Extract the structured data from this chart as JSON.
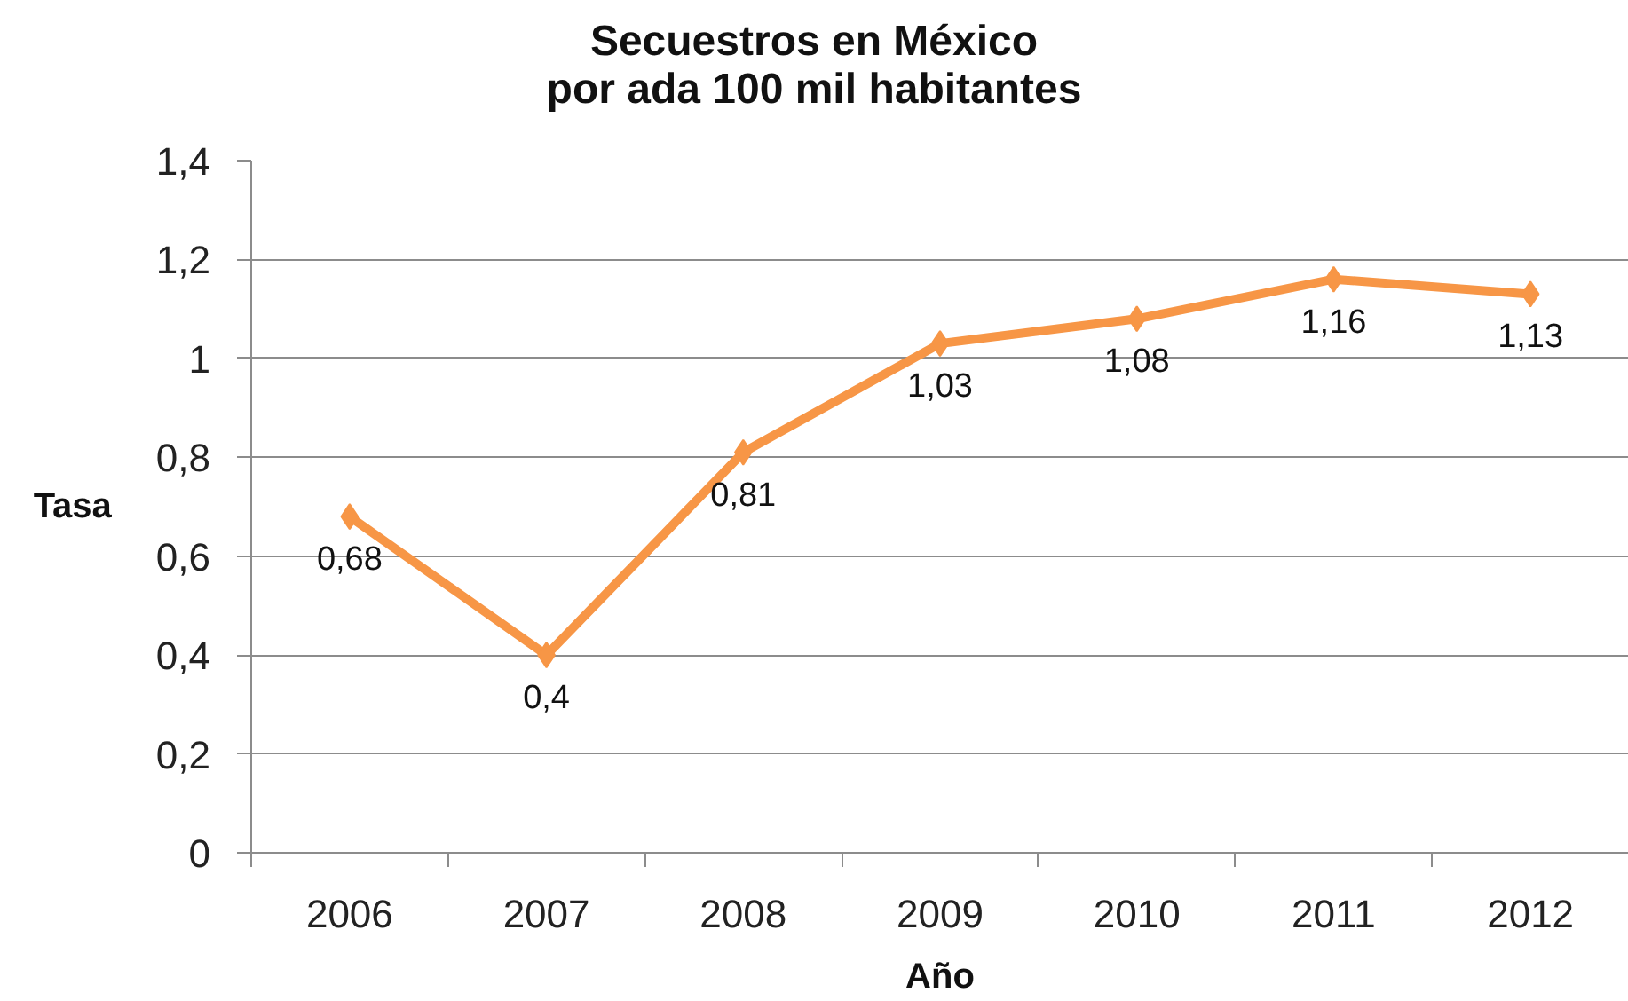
{
  "chart_data": {
    "type": "line",
    "title": "Secuestros en México\npor ada 100 mil habitantes",
    "xlabel": "Año",
    "ylabel": "Tasa",
    "categories": [
      "2006",
      "2007",
      "2008",
      "2009",
      "2010",
      "2011",
      "2012"
    ],
    "series": [
      {
        "color": "#f79646",
        "values": [
          0.68,
          0.4,
          0.81,
          1.03,
          1.08,
          1.16,
          1.13
        ],
        "value_labels": [
          "0,68",
          "0,4",
          "0,81",
          "1,03",
          "1,08",
          "1,16",
          "1,13"
        ]
      }
    ],
    "ylim": [
      0,
      1.4
    ],
    "yticks": [
      0,
      {
        "value": 0.2,
        "label": "0,2"
      },
      {
        "value": 0.4,
        "label": "0,4"
      },
      {
        "value": 0.6,
        "label": "0,6"
      },
      {
        "value": 0.8,
        "label": "0,8"
      },
      1,
      {
        "value": 1.2,
        "label": "1,2"
      },
      {
        "value": 1.4,
        "label": "1,4"
      }
    ],
    "grid": "y",
    "marker": "diamond",
    "line_style": "solid"
  }
}
